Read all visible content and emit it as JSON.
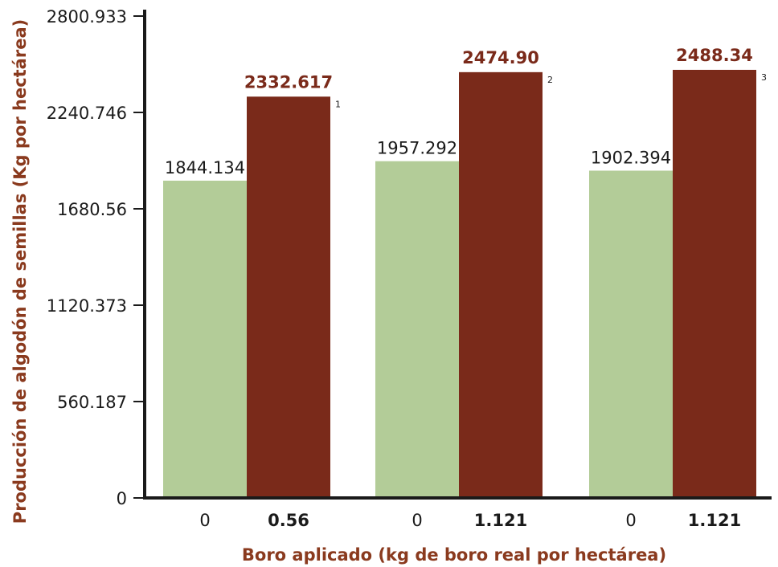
{
  "chart_data": {
    "type": "bar",
    "xlabel": "Boro aplicado (kg de boro real por hectárea)",
    "ylabel": "Producción de algodón de semillas (Kg por hectárea)",
    "ylim": [
      0,
      2800.933
    ],
    "yticks": [
      "0",
      "560.187",
      "1120.373",
      "1680.56",
      "2240.746",
      "2800.933"
    ],
    "grid": false,
    "colors": {
      "control": "#b3cc98",
      "treated": "#7a2a1a",
      "axis": "#1a1a1a",
      "title": "#8a3a1e"
    },
    "groups": [
      {
        "control": {
          "category": "0",
          "value": 1844.134,
          "label": "1844.134"
        },
        "treated": {
          "category": "0.56",
          "value": 2332.617,
          "label": "2332.617",
          "note": "1"
        }
      },
      {
        "control": {
          "category": "0",
          "value": 1957.292,
          "label": "1957.292"
        },
        "treated": {
          "category": "1.121",
          "value": 2474.9,
          "label": "2474.90",
          "note": "2"
        }
      },
      {
        "control": {
          "category": "0",
          "value": 1902.394,
          "label": "1902.394"
        },
        "treated": {
          "category": "1.121",
          "value": 2488.34,
          "label": "2488.34",
          "note": "3"
        }
      }
    ]
  }
}
